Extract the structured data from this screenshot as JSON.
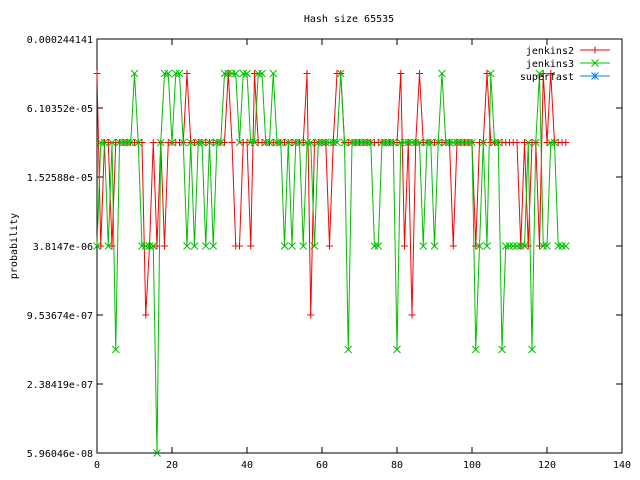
{
  "chart_data": {
    "type": "line",
    "title": "Hash size 65535",
    "xlabel": "",
    "ylabel": "probability",
    "xlim": [
      0,
      140
    ],
    "x_ticks": [
      0,
      20,
      40,
      60,
      80,
      100,
      120,
      140
    ],
    "x_tick_labels": [
      "0",
      "20",
      "40",
      "60",
      "80",
      "100",
      "120",
      "140"
    ],
    "y_scale": "log",
    "ylim": [
      5.96046e-08,
      0.000244141
    ],
    "y_ticks": [
      0.000244141,
      6.10352e-05,
      1.52588e-05,
      3.8147e-06,
      9.53674e-07,
      2.38419e-07,
      5.96046e-08
    ],
    "y_tick_labels": [
      "0.000244141",
      "6.10352e-05",
      "1.52588e-05",
      "3.8147e-06",
      "9.53674e-07",
      "2.38419e-07",
      "5.96046e-08"
    ],
    "grid": false,
    "legend_position": "top-right",
    "series": [
      {
        "name": "jenkins2",
        "color": "#ff0000",
        "marker": "plus",
        "x": [
          0,
          1,
          2,
          3,
          4,
          5,
          6,
          7,
          8,
          9,
          10,
          11,
          12,
          13,
          14,
          15,
          16,
          17,
          18,
          19,
          20,
          21,
          22,
          23,
          24,
          25,
          26,
          27,
          28,
          29,
          30,
          31,
          32,
          33,
          34,
          35,
          36,
          37,
          38,
          39,
          40,
          41,
          42,
          43,
          44,
          45,
          46,
          47,
          48,
          49,
          50,
          51,
          52,
          53,
          54,
          55,
          56,
          57,
          58,
          59,
          60,
          61,
          62,
          63,
          64,
          65,
          66,
          67,
          68,
          69,
          70,
          71,
          72,
          73,
          74,
          75,
          76,
          77,
          78,
          79,
          80,
          81,
          82,
          83,
          84,
          85,
          86,
          87,
          88,
          89,
          90,
          91,
          92,
          93,
          94,
          95,
          96,
          97,
          98,
          99,
          100,
          101,
          102,
          103,
          104,
          105,
          106,
          107,
          108,
          109,
          110,
          111,
          112,
          113,
          114,
          115,
          116,
          117,
          118,
          119,
          120,
          121,
          122,
          123,
          124,
          125
        ],
        "y": [
          0.00012207,
          3.8147e-06,
          3.0518e-05,
          3.0518e-05,
          3.8147e-06,
          3.0518e-05,
          3.0518e-05,
          3.0518e-05,
          3.0518e-05,
          3.0518e-05,
          3.0518e-05,
          3.0518e-05,
          3.0518e-05,
          9.53674e-07,
          3.8147e-06,
          3.0518e-05,
          3.8147e-06,
          3.0518e-05,
          3.8147e-06,
          3.0518e-05,
          3.0518e-05,
          3.0518e-05,
          3.0518e-05,
          3.0518e-05,
          0.00012207,
          3.0518e-05,
          3.0518e-05,
          3.0518e-05,
          3.0518e-05,
          3.0518e-05,
          3.0518e-05,
          3.0518e-05,
          3.0518e-05,
          3.0518e-05,
          3.0518e-05,
          0.00012207,
          3.0518e-05,
          3.8147e-06,
          3.8147e-06,
          3.0518e-05,
          3.0518e-05,
          3.8147e-06,
          0.00012207,
          3.0518e-05,
          3.0518e-05,
          3.0518e-05,
          3.0518e-05,
          3.0518e-05,
          3.0518e-05,
          3.0518e-05,
          3.0518e-05,
          3.0518e-05,
          3.0518e-05,
          3.0518e-05,
          3.0518e-05,
          3.0518e-05,
          0.00012207,
          9.53674e-07,
          3.0518e-05,
          3.0518e-05,
          3.0518e-05,
          3.0518e-05,
          3.8147e-06,
          3.0518e-05,
          0.00012207,
          0.00012207,
          3.0518e-05,
          3.0518e-05,
          3.0518e-05,
          3.0518e-05,
          3.0518e-05,
          3.0518e-05,
          3.0518e-05,
          3.0518e-05,
          3.0518e-05,
          3.0518e-05,
          3.0518e-05,
          3.0518e-05,
          3.0518e-05,
          3.0518e-05,
          3.0518e-05,
          0.00012207,
          3.8147e-06,
          3.0518e-05,
          9.53674e-07,
          3.0518e-05,
          0.00012207,
          3.0518e-05,
          3.0518e-05,
          3.0518e-05,
          3.0518e-05,
          3.0518e-05,
          3.0518e-05,
          3.0518e-05,
          3.0518e-05,
          3.8147e-06,
          3.0518e-05,
          3.0518e-05,
          3.0518e-05,
          3.0518e-05,
          3.0518e-05,
          3.8147e-06,
          3.0518e-05,
          3.0518e-05,
          0.00012207,
          3.0518e-05,
          3.0518e-05,
          3.0518e-05,
          3.0518e-05,
          3.0518e-05,
          3.0518e-05,
          3.0518e-05,
          3.0518e-05,
          3.8147e-06,
          3.0518e-05,
          3.8147e-06,
          3.0518e-05,
          3.0518e-05,
          3.8147e-06,
          0.00012207,
          3.0518e-05,
          0.00012207,
          3.0518e-05,
          3.0518e-05,
          3.0518e-05,
          3.0518e-05
        ]
      },
      {
        "name": "jenkins3",
        "color": "#00c000",
        "marker": "cross",
        "x": [
          0,
          1,
          2,
          3,
          4,
          5,
          6,
          7,
          8,
          9,
          10,
          11,
          12,
          13,
          14,
          15,
          16,
          17,
          18,
          19,
          20,
          21,
          22,
          23,
          24,
          25,
          26,
          27,
          28,
          29,
          30,
          31,
          32,
          33,
          34,
          35,
          36,
          37,
          38,
          39,
          40,
          41,
          42,
          43,
          44,
          45,
          46,
          47,
          48,
          49,
          50,
          51,
          52,
          53,
          54,
          55,
          56,
          57,
          58,
          59,
          60,
          61,
          62,
          63,
          64,
          65,
          66,
          67,
          68,
          69,
          70,
          71,
          72,
          73,
          74,
          75,
          76,
          77,
          78,
          79,
          80,
          81,
          82,
          83,
          84,
          85,
          86,
          87,
          88,
          89,
          90,
          91,
          92,
          93,
          94,
          95,
          96,
          97,
          98,
          99,
          100,
          101,
          102,
          103,
          104,
          105,
          106,
          107,
          108,
          109,
          110,
          111,
          112,
          113,
          114,
          115,
          116,
          117,
          118,
          119,
          120,
          121,
          122,
          123,
          124,
          125
        ],
        "y": [
          3.8147e-06,
          3.0518e-05,
          3.0518e-05,
          3.8147e-06,
          3.0518e-05,
          4.76837e-07,
          3.0518e-05,
          3.0518e-05,
          3.0518e-05,
          3.0518e-05,
          0.00012207,
          3.0518e-05,
          3.8147e-06,
          3.8147e-06,
          3.8147e-06,
          3.8147e-06,
          5.96046e-08,
          3.0518e-05,
          0.00012207,
          0.00012207,
          3.0518e-05,
          0.00012207,
          0.00012207,
          3.0518e-05,
          3.8147e-06,
          3.0518e-05,
          3.8147e-06,
          3.0518e-05,
          3.0518e-05,
          3.8147e-06,
          3.0518e-05,
          3.8147e-06,
          3.0518e-05,
          3.0518e-05,
          0.00012207,
          0.00012207,
          0.00012207,
          0.00012207,
          3.0518e-05,
          0.00012207,
          0.00012207,
          3.0518e-05,
          3.0518e-05,
          0.00012207,
          0.00012207,
          3.0518e-05,
          3.0518e-05,
          0.00012207,
          3.0518e-05,
          3.0518e-05,
          3.8147e-06,
          3.0518e-05,
          3.8147e-06,
          3.0518e-05,
          3.0518e-05,
          3.8147e-06,
          3.0518e-05,
          3.0518e-05,
          3.8147e-06,
          3.0518e-05,
          3.0518e-05,
          3.0518e-05,
          3.0518e-05,
          3.0518e-05,
          3.0518e-05,
          0.00012207,
          3.0518e-05,
          4.76837e-07,
          3.0518e-05,
          3.0518e-05,
          3.0518e-05,
          3.0518e-05,
          3.0518e-05,
          3.0518e-05,
          3.8147e-06,
          3.8147e-06,
          3.0518e-05,
          3.0518e-05,
          3.0518e-05,
          3.0518e-05,
          4.76837e-07,
          3.0518e-05,
          3.0518e-05,
          3.0518e-05,
          3.0518e-05,
          3.0518e-05,
          3.0518e-05,
          3.8147e-06,
          3.0518e-05,
          3.0518e-05,
          3.8147e-06,
          3.0518e-05,
          0.00012207,
          3.0518e-05,
          3.0518e-05,
          3.0518e-05,
          3.0518e-05,
          3.0518e-05,
          3.0518e-05,
          3.0518e-05,
          3.0518e-05,
          4.76837e-07,
          3.8147e-06,
          3.0518e-05,
          3.8147e-06,
          0.00012207,
          3.0518e-05,
          3.0518e-05,
          4.76837e-07,
          3.8147e-06,
          3.8147e-06,
          3.8147e-06,
          3.8147e-06,
          3.8147e-06,
          3.8147e-06,
          3.0518e-05,
          4.76837e-07,
          3.0518e-05,
          0.00012207,
          3.8147e-06,
          3.8147e-06,
          3.0518e-05,
          3.0518e-05,
          3.8147e-06,
          3.8147e-06,
          3.8147e-06
        ]
      },
      {
        "name": "superfast",
        "color": "#0080ff",
        "marker": "star",
        "x": [],
        "y": []
      }
    ]
  }
}
